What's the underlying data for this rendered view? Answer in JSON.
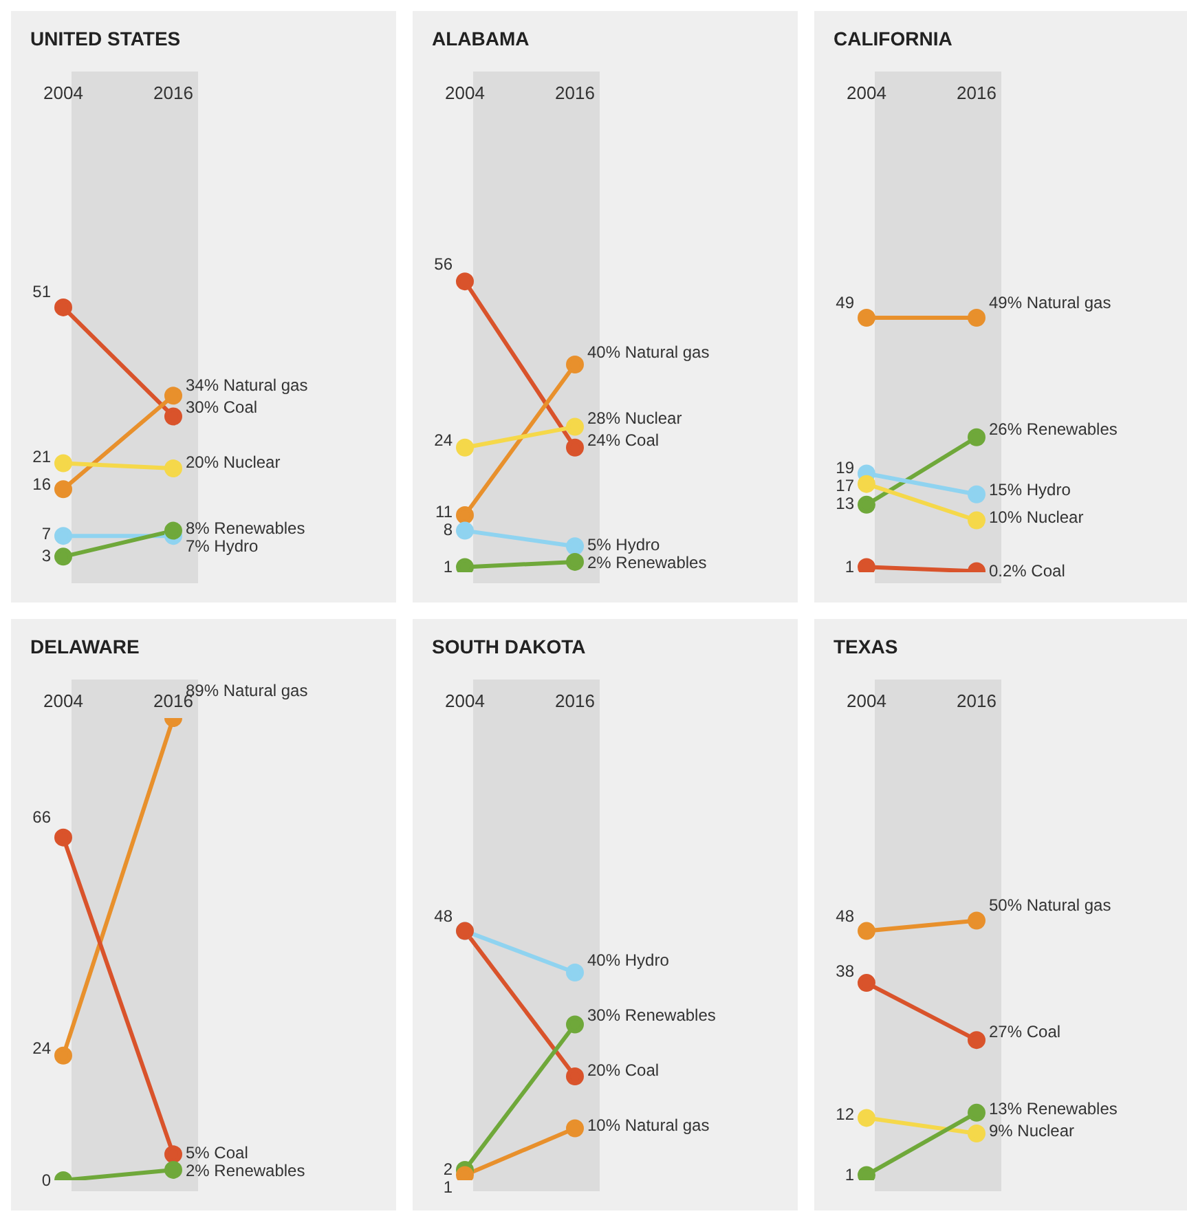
{
  "chart_data": [
    {
      "type": "line",
      "title": "UNITED STATES",
      "categories": [
        "2004",
        "2016"
      ],
      "tick_labels": "x",
      "grid": false,
      "legend": false,
      "marker": "circle",
      "line_style": "solid",
      "series": [
        {
          "name": "Coal",
          "color": "#d9532b",
          "values": [
            51,
            30
          ],
          "value_labels": [
            "51",
            "30%"
          ]
        },
        {
          "name": "Natural gas",
          "color": "#e8902c",
          "values": [
            16,
            34
          ],
          "value_labels": [
            "16",
            "34%"
          ]
        },
        {
          "name": "Nuclear",
          "color": "#f5d84a",
          "values": [
            21,
            20
          ],
          "value_labels": [
            "21",
            "20%"
          ]
        },
        {
          "name": "Hydro",
          "color": "#8fd3f0",
          "values": [
            7,
            7
          ],
          "value_labels": [
            "7",
            "7%"
          ]
        },
        {
          "name": "Renewables",
          "color": "#6fa83a",
          "values": [
            3,
            8
          ],
          "value_labels": [
            "3",
            "8%"
          ]
        }
      ]
    },
    {
      "type": "line",
      "title": "ALABAMA",
      "categories": [
        "2004",
        "2016"
      ],
      "tick_labels": "x",
      "grid": false,
      "legend": false,
      "marker": "circle",
      "line_style": "solid",
      "series": [
        {
          "name": "Coal",
          "color": "#d9532b",
          "values": [
            56,
            24
          ],
          "value_labels": [
            "56",
            "24%"
          ]
        },
        {
          "name": "Natural gas",
          "color": "#e8902c",
          "values": [
            11,
            40
          ],
          "value_labels": [
            "11",
            "40%"
          ]
        },
        {
          "name": "Nuclear",
          "color": "#f5d84a",
          "values": [
            24,
            28
          ],
          "value_labels": [
            "24",
            "28%"
          ]
        },
        {
          "name": "Hydro",
          "color": "#8fd3f0",
          "values": [
            8,
            5
          ],
          "value_labels": [
            "8",
            "5%"
          ]
        },
        {
          "name": "Renewables",
          "color": "#6fa83a",
          "values": [
            1,
            2
          ],
          "value_labels": [
            "1",
            "2%"
          ]
        }
      ]
    },
    {
      "type": "line",
      "title": "CALIFORNIA",
      "categories": [
        "2004",
        "2016"
      ],
      "tick_labels": "x",
      "grid": false,
      "legend": false,
      "marker": "circle",
      "line_style": "solid",
      "series": [
        {
          "name": "Natural gas",
          "color": "#e8902c",
          "values": [
            49,
            49
          ],
          "value_labels": [
            "49",
            "49%"
          ]
        },
        {
          "name": "Renewables",
          "color": "#6fa83a",
          "values": [
            13,
            26
          ],
          "value_labels": [
            "13",
            "26%"
          ]
        },
        {
          "name": "Hydro",
          "color": "#8fd3f0",
          "values": [
            19,
            15
          ],
          "value_labels": [
            "19",
            "15%"
          ]
        },
        {
          "name": "Nuclear",
          "color": "#f5d84a",
          "values": [
            17,
            10
          ],
          "value_labels": [
            "17",
            "10%"
          ]
        },
        {
          "name": "Coal",
          "color": "#d9532b",
          "values": [
            1,
            0.2
          ],
          "value_labels": [
            "1",
            "0.2%"
          ]
        }
      ]
    },
    {
      "type": "line",
      "title": "DELAWARE",
      "categories": [
        "2004",
        "2016"
      ],
      "tick_labels": "x",
      "grid": false,
      "legend": false,
      "marker": "circle",
      "line_style": "solid",
      "series": [
        {
          "name": "Natural gas",
          "color": "#e8902c",
          "values": [
            24,
            89
          ],
          "value_labels": [
            "24",
            "89%"
          ]
        },
        {
          "name": "Coal",
          "color": "#d9532b",
          "values": [
            66,
            5
          ],
          "value_labels": [
            "66",
            "5%"
          ]
        },
        {
          "name": "Renewables",
          "color": "#6fa83a",
          "values": [
            0,
            2
          ],
          "value_labels": [
            "0",
            "2%"
          ]
        }
      ]
    },
    {
      "type": "line",
      "title": "SOUTH DAKOTA",
      "categories": [
        "2004",
        "2016"
      ],
      "tick_labels": "x",
      "grid": false,
      "legend": false,
      "marker": "circle",
      "line_style": "solid",
      "series": [
        {
          "name": "Hydro",
          "color": "#8fd3f0",
          "values": [
            48,
            40
          ],
          "value_labels": [
            "48",
            "40%"
          ]
        },
        {
          "name": "Coal",
          "color": "#d9532b",
          "values": [
            48,
            20
          ],
          "value_labels": [
            null,
            "20%"
          ]
        },
        {
          "name": "Renewables",
          "color": "#6fa83a",
          "values": [
            2,
            30
          ],
          "value_labels": [
            "2",
            "30%"
          ]
        },
        {
          "name": "Natural gas",
          "color": "#e8902c",
          "values": [
            1,
            10
          ],
          "value_labels": [
            "1",
            "10%"
          ]
        }
      ]
    },
    {
      "type": "line",
      "title": "TEXAS",
      "categories": [
        "2004",
        "2016"
      ],
      "tick_labels": "x",
      "grid": false,
      "legend": false,
      "marker": "circle",
      "line_style": "solid",
      "series": [
        {
          "name": "Natural gas",
          "color": "#e8902c",
          "values": [
            48,
            50
          ],
          "value_labels": [
            "48",
            "50%"
          ]
        },
        {
          "name": "Coal",
          "color": "#d9532b",
          "values": [
            38,
            27
          ],
          "value_labels": [
            "38",
            "27%"
          ]
        },
        {
          "name": "Nuclear",
          "color": "#f5d84a",
          "values": [
            12,
            9
          ],
          "value_labels": [
            "12",
            "9%"
          ]
        },
        {
          "name": "Renewables",
          "color": "#6fa83a",
          "values": [
            1,
            13
          ],
          "value_labels": [
            "1",
            "13%"
          ]
        }
      ]
    }
  ]
}
